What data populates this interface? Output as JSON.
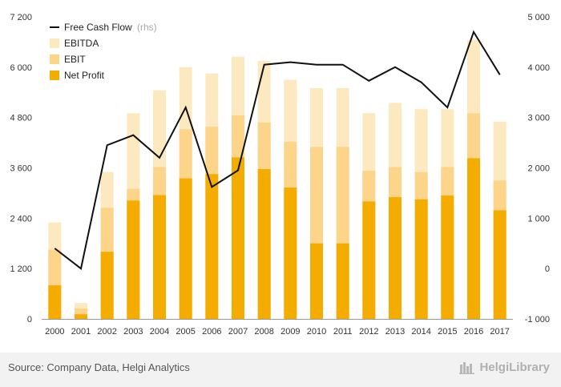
{
  "chart_data": {
    "type": "bar+line",
    "categories": [
      "2000",
      "2001",
      "2002",
      "2003",
      "2004",
      "2005",
      "2006",
      "2007",
      "2008",
      "2009",
      "2010",
      "2011",
      "2012",
      "2013",
      "2014",
      "2015",
      "2016",
      "2017"
    ],
    "series": [
      {
        "name": "EBITDA",
        "axis": "left",
        "color": "#fce9c0",
        "values": [
          2300,
          380,
          3500,
          4900,
          5450,
          6000,
          5850,
          6250,
          6150,
          5700,
          5500,
          5500,
          4900,
          5150,
          5000,
          5000,
          6650,
          4700
        ]
      },
      {
        "name": "EBIT",
        "axis": "left",
        "color": "#fcd58a",
        "values": [
          1650,
          250,
          2650,
          3100,
          3620,
          4520,
          4580,
          4850,
          4680,
          4220,
          4100,
          4100,
          3530,
          3620,
          3500,
          3620,
          4900,
          3300
        ]
      },
      {
        "name": "Net Profit",
        "axis": "left",
        "color": "#f5ac00",
        "values": [
          800,
          110,
          1600,
          2820,
          2950,
          3350,
          3450,
          3850,
          3570,
          3130,
          1800,
          1800,
          2800,
          2900,
          2850,
          2940,
          3830,
          2590
        ]
      },
      {
        "name": "Free Cash Flow",
        "axis": "right",
        "color": "#111111",
        "values": [
          400,
          0,
          2450,
          2650,
          2200,
          3200,
          1620,
          1950,
          4050,
          4100,
          4050,
          4050,
          3730,
          4000,
          3700,
          3200,
          4700,
          3850
        ]
      }
    ],
    "legend": [
      {
        "label": "Free Cash Flow",
        "suffix": " (rhs)",
        "kind": "line",
        "color": "#111111"
      },
      {
        "label": "EBITDA",
        "suffix": "",
        "kind": "box",
        "color": "#fce9c0"
      },
      {
        "label": "EBIT",
        "suffix": "",
        "kind": "box",
        "color": "#fcd58a"
      },
      {
        "label": "Net Profit",
        "suffix": "",
        "kind": "box",
        "color": "#f5ac00"
      }
    ],
    "legend_position": "top-left",
    "y_left": {
      "min": 0,
      "max": 7200,
      "ticks": [
        0,
        1200,
        2400,
        3600,
        4800,
        6000,
        7200
      ],
      "tick_labels": [
        "0",
        "1 200",
        "2 400",
        "3 600",
        "4 800",
        "6 000",
        "7 200"
      ]
    },
    "y_right": {
      "min": -1000,
      "max": 5000,
      "ticks": [
        -1000,
        0,
        1000,
        2000,
        3000,
        4000,
        5000
      ],
      "tick_labels": [
        "-1 000",
        "0",
        "1 000",
        "2 000",
        "3 000",
        "4 000",
        "5 000"
      ]
    },
    "grid": false
  },
  "footer": {
    "source": "Source: Company Data, Helgi Analytics",
    "brand": "HelgiLibrary"
  }
}
